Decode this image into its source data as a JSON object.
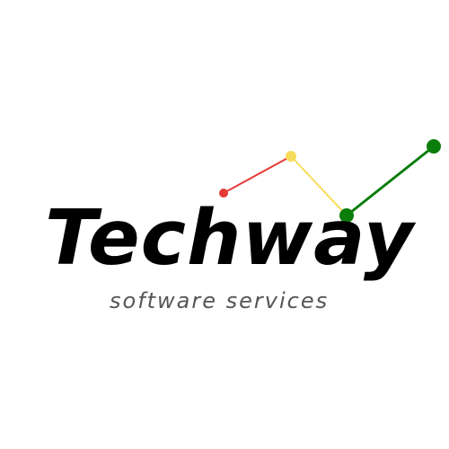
{
  "brand": {
    "name": "Techway",
    "tagline": "software services"
  },
  "colors": {
    "text": "#000000",
    "tagline": "#555555",
    "red": "#e53935",
    "yellow": "#f7dc5c",
    "green": "#0b7d0b",
    "background": "#ffffff"
  },
  "icons": [
    "rising-trend-line-icon"
  ]
}
